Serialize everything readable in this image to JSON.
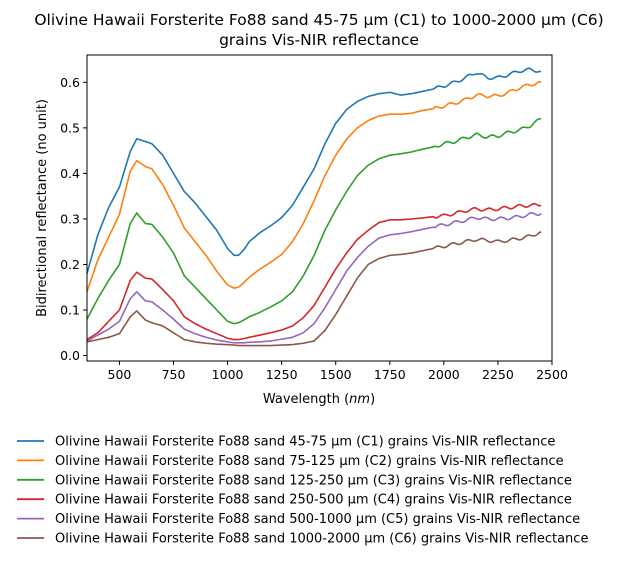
{
  "chart_data": {
    "type": "line",
    "title": "Olivine Hawaii Forsterite Fo88 sand 45-75 µm (C1) to 1000-2000 µm (C6)",
    "subtitle": "grains Vis-NIR reflectance",
    "xlabel": "Wavelength (nm)",
    "ylabel": "Bidirectional reflectance (no unit)",
    "xlim": [
      350,
      2500
    ],
    "ylim": [
      -0.012,
      0.66
    ],
    "xticks": [
      500,
      750,
      1000,
      1250,
      1500,
      1750,
      2000,
      2250,
      2500
    ],
    "yticks": [
      0.0,
      0.1,
      0.2,
      0.3,
      0.4,
      0.5,
      0.6
    ],
    "grid": false,
    "legend_position": "below-plot",
    "x": [
      350,
      400,
      450,
      500,
      550,
      580,
      620,
      650,
      700,
      750,
      800,
      850,
      900,
      950,
      1000,
      1030,
      1050,
      1075,
      1100,
      1150,
      1200,
      1250,
      1300,
      1350,
      1400,
      1450,
      1500,
      1550,
      1600,
      1650,
      1700,
      1750,
      1800,
      1850,
      1900,
      1950,
      2000,
      2050,
      2100,
      2150,
      2200,
      2250,
      2300,
      2350,
      2400,
      2450
    ],
    "series": [
      {
        "name": "Olivine Hawaii Forsterite Fo88 sand 45-75 µm (C1) grains Vis-NIR reflectance",
        "color": "#1f77b4",
        "values": [
          0.18,
          0.265,
          0.325,
          0.37,
          0.448,
          0.476,
          0.47,
          0.465,
          0.44,
          0.4,
          0.36,
          0.335,
          0.305,
          0.275,
          0.235,
          0.22,
          0.22,
          0.232,
          0.25,
          0.27,
          0.285,
          0.303,
          0.33,
          0.37,
          0.41,
          0.465,
          0.51,
          0.54,
          0.558,
          0.569,
          0.575,
          0.578,
          0.572,
          0.575,
          0.58,
          0.585,
          0.592,
          0.6,
          0.61,
          0.622,
          0.61,
          0.61,
          0.617,
          0.625,
          0.628,
          0.624
        ]
      },
      {
        "name": "Olivine Hawaii Forsterite Fo88 sand 75-125 µm (C2) grains Vis-NIR reflectance",
        "color": "#ff7f0e",
        "values": [
          0.14,
          0.21,
          0.26,
          0.31,
          0.405,
          0.428,
          0.415,
          0.41,
          0.375,
          0.33,
          0.28,
          0.25,
          0.22,
          0.185,
          0.155,
          0.148,
          0.15,
          0.16,
          0.172,
          0.19,
          0.205,
          0.222,
          0.25,
          0.29,
          0.34,
          0.395,
          0.44,
          0.475,
          0.5,
          0.516,
          0.526,
          0.53,
          0.53,
          0.532,
          0.538,
          0.542,
          0.548,
          0.554,
          0.562,
          0.572,
          0.57,
          0.57,
          0.578,
          0.588,
          0.595,
          0.6
        ]
      },
      {
        "name": "Olivine Hawaii Forsterite Fo88 sand 125-250 µm (C3) grains Vis-NIR reflectance",
        "color": "#2ca02c",
        "values": [
          0.08,
          0.125,
          0.165,
          0.2,
          0.29,
          0.313,
          0.29,
          0.288,
          0.26,
          0.225,
          0.175,
          0.15,
          0.125,
          0.1,
          0.075,
          0.07,
          0.072,
          0.078,
          0.085,
          0.095,
          0.107,
          0.12,
          0.14,
          0.175,
          0.22,
          0.275,
          0.32,
          0.36,
          0.395,
          0.418,
          0.432,
          0.44,
          0.443,
          0.447,
          0.453,
          0.458,
          0.465,
          0.47,
          0.478,
          0.485,
          0.48,
          0.482,
          0.49,
          0.495,
          0.505,
          0.52
        ]
      },
      {
        "name": "Olivine Hawaii Forsterite Fo88 sand 250-500 µm (C4) grains Vis-NIR reflectance",
        "color": "#d62728",
        "values": [
          0.035,
          0.05,
          0.075,
          0.1,
          0.165,
          0.183,
          0.17,
          0.168,
          0.145,
          0.12,
          0.085,
          0.07,
          0.058,
          0.048,
          0.038,
          0.035,
          0.035,
          0.037,
          0.04,
          0.045,
          0.05,
          0.056,
          0.065,
          0.083,
          0.11,
          0.15,
          0.19,
          0.225,
          0.255,
          0.275,
          0.292,
          0.298,
          0.298,
          0.3,
          0.302,
          0.305,
          0.307,
          0.312,
          0.318,
          0.322,
          0.32,
          0.322,
          0.325,
          0.328,
          0.33,
          0.33
        ]
      },
      {
        "name": "Olivine Hawaii Forsterite Fo88 sand 500-1000 µm (C5) grains Vis-NIR reflectance",
        "color": "#9467bd",
        "values": [
          0.032,
          0.045,
          0.058,
          0.075,
          0.125,
          0.14,
          0.12,
          0.118,
          0.1,
          0.08,
          0.058,
          0.048,
          0.04,
          0.034,
          0.03,
          0.028,
          0.028,
          0.028,
          0.029,
          0.03,
          0.032,
          0.036,
          0.04,
          0.05,
          0.07,
          0.105,
          0.145,
          0.185,
          0.215,
          0.24,
          0.258,
          0.265,
          0.268,
          0.272,
          0.277,
          0.282,
          0.287,
          0.292,
          0.297,
          0.303,
          0.3,
          0.3,
          0.302,
          0.305,
          0.31,
          0.312
        ]
      },
      {
        "name": "Olivine Hawaii Forsterite Fo88 sand 1000-2000 µm (C6) grains Vis-NIR reflectance",
        "color": "#8c564b",
        "values": [
          0.03,
          0.035,
          0.04,
          0.048,
          0.085,
          0.098,
          0.078,
          0.072,
          0.065,
          0.05,
          0.035,
          0.03,
          0.027,
          0.025,
          0.024,
          0.023,
          0.022,
          0.022,
          0.022,
          0.022,
          0.022,
          0.023,
          0.024,
          0.027,
          0.032,
          0.055,
          0.09,
          0.13,
          0.17,
          0.2,
          0.213,
          0.22,
          0.222,
          0.225,
          0.23,
          0.235,
          0.24,
          0.245,
          0.25,
          0.255,
          0.253,
          0.25,
          0.253,
          0.257,
          0.262,
          0.272
        ]
      }
    ]
  }
}
